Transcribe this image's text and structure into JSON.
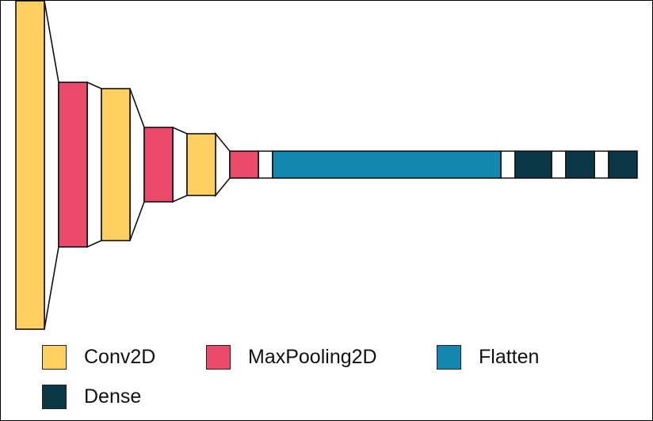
{
  "colors": {
    "conv2d": "#FFCF5F",
    "maxpooling2d": "#EC4A6B",
    "flatten": "#1387AF",
    "dense": "#0B3847",
    "spacer": "#FFFFFF",
    "outline": "#111111"
  },
  "legend": [
    {
      "label": "Conv2D",
      "type": "conv2d"
    },
    {
      "label": "MaxPooling2D",
      "type": "maxpooling2d"
    },
    {
      "label": "Flatten",
      "type": "flatten"
    },
    {
      "label": "Dense",
      "type": "dense"
    }
  ],
  "layers": [
    {
      "type": "conv2d"
    },
    {
      "type": "maxpooling2d"
    },
    {
      "type": "conv2d"
    },
    {
      "type": "maxpooling2d"
    },
    {
      "type": "conv2d"
    },
    {
      "type": "maxpooling2d"
    },
    {
      "type": "flatten"
    },
    {
      "type": "dense"
    },
    {
      "type": "dense"
    },
    {
      "type": "dense"
    }
  ]
}
